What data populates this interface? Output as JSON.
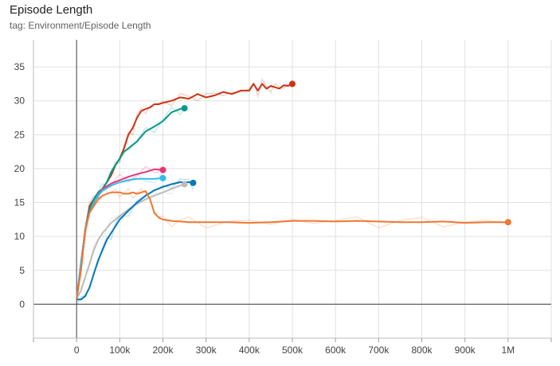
{
  "header": {
    "title": "Episode Length",
    "tag": "tag: Environment/Episode Length"
  },
  "chart_data": {
    "type": "line",
    "title": "Episode Length",
    "xlabel": "",
    "ylabel": "",
    "xlim": [
      -100000,
      1100000
    ],
    "ylim": [
      -5,
      39
    ],
    "grid": true,
    "x_ticks": [
      0,
      100000,
      200000,
      300000,
      400000,
      500000,
      600000,
      700000,
      800000,
      900000,
      1000000
    ],
    "x_tick_labels": [
      "0",
      "100k",
      "200k",
      "300k",
      "400k",
      "500k",
      "600k",
      "700k",
      "800k",
      "900k",
      "1M"
    ],
    "y_ticks": [
      0,
      5,
      10,
      15,
      20,
      25,
      30,
      35
    ],
    "y_tick_labels": [
      "0",
      "5",
      "10",
      "15",
      "20",
      "25",
      "30",
      "35"
    ],
    "series": [
      {
        "color": "#cc3311",
        "x": [
          0,
          10000,
          20000,
          30000,
          40000,
          50000,
          60000,
          70000,
          80000,
          90000,
          100000,
          110000,
          120000,
          130000,
          140000,
          150000,
          160000,
          170000,
          180000,
          190000,
          200000,
          220000,
          240000,
          260000,
          280000,
          300000,
          320000,
          340000,
          360000,
          380000,
          400000,
          410000,
          420000,
          430000,
          440000,
          450000,
          460000,
          470000,
          480000,
          490000,
          500000
        ],
        "y": [
          0.8,
          5,
          11,
          14.5,
          15.5,
          16.5,
          17,
          18,
          19,
          20.5,
          21.5,
          23,
          25,
          26,
          27.5,
          28.5,
          28.8,
          29,
          29.5,
          29.5,
          29.7,
          30,
          30.5,
          30.3,
          31,
          30.5,
          30.8,
          31.3,
          31,
          31.5,
          31.5,
          32.5,
          31.5,
          32.5,
          31.8,
          32.2,
          32,
          31.8,
          32.3,
          32.2,
          32.5
        ]
      },
      {
        "color": "#009988",
        "x": [
          0,
          10000,
          20000,
          30000,
          40000,
          50000,
          60000,
          70000,
          80000,
          90000,
          100000,
          110000,
          120000,
          140000,
          160000,
          180000,
          200000,
          220000,
          240000,
          250000
        ],
        "y": [
          0.8,
          6,
          11,
          14,
          15.5,
          16.5,
          17,
          18,
          19.5,
          20.5,
          21.5,
          22.5,
          23,
          24,
          25.5,
          26.2,
          27,
          28.3,
          28.8,
          28.9
        ]
      },
      {
        "color": "#ee3377",
        "x": [
          0,
          10000,
          20000,
          30000,
          40000,
          50000,
          60000,
          80000,
          100000,
          120000,
          140000,
          160000,
          180000,
          200000
        ],
        "y": [
          0.8,
          6,
          11,
          13.5,
          15,
          16,
          17,
          17.8,
          18.3,
          18.8,
          19.2,
          19.5,
          19.9,
          19.8
        ]
      },
      {
        "color": "#33bbee",
        "x": [
          0,
          10000,
          20000,
          30000,
          40000,
          50000,
          60000,
          80000,
          100000,
          120000,
          140000,
          160000,
          180000,
          200000
        ],
        "y": [
          0.8,
          6,
          11,
          13.5,
          15,
          16,
          16.8,
          17.5,
          18,
          18.3,
          18.5,
          18.5,
          18.5,
          18.6
        ]
      },
      {
        "color": "#bbbbbb",
        "x": [
          0,
          10000,
          20000,
          30000,
          40000,
          50000,
          60000,
          80000,
          100000,
          120000,
          140000,
          160000,
          180000,
          200000,
          220000,
          240000,
          250000
        ],
        "y": [
          0.8,
          2,
          4,
          6,
          8,
          9.5,
          10.5,
          12,
          13,
          14,
          14.8,
          15.5,
          16,
          16.5,
          17,
          17.5,
          17.7
        ]
      },
      {
        "color": "#0077bb",
        "x": [
          0,
          10000,
          20000,
          30000,
          40000,
          50000,
          60000,
          70000,
          80000,
          90000,
          100000,
          120000,
          140000,
          160000,
          180000,
          200000,
          220000,
          240000,
          260000,
          270000
        ],
        "y": [
          0.7,
          0.7,
          1.2,
          2.5,
          4.5,
          6.5,
          8,
          9.5,
          10.5,
          11.5,
          12.5,
          13.8,
          15,
          16,
          16.8,
          17.3,
          17.7,
          18,
          18,
          17.9
        ]
      },
      {
        "color": "#ee7733",
        "x": [
          0,
          10000,
          20000,
          30000,
          40000,
          50000,
          60000,
          70000,
          80000,
          90000,
          100000,
          110000,
          120000,
          130000,
          140000,
          150000,
          160000,
          170000,
          180000,
          190000,
          200000,
          220000,
          240000,
          260000,
          300000,
          350000,
          400000,
          450000,
          500000,
          550000,
          600000,
          650000,
          700000,
          750000,
          800000,
          850000,
          900000,
          950000,
          1000000
        ],
        "y": [
          0.8,
          5,
          11,
          13.5,
          14.5,
          15.5,
          16,
          16.3,
          16.5,
          16.5,
          16.5,
          16.3,
          16.3,
          16.5,
          16.3,
          16.5,
          16.7,
          15.5,
          13.5,
          12.8,
          12.5,
          12.3,
          12.2,
          12.1,
          12.1,
          12.1,
          12,
          12.1,
          12.3,
          12.3,
          12.2,
          12.3,
          12.2,
          12.1,
          12.1,
          12.2,
          12,
          12.1,
          12.1
        ]
      }
    ]
  }
}
